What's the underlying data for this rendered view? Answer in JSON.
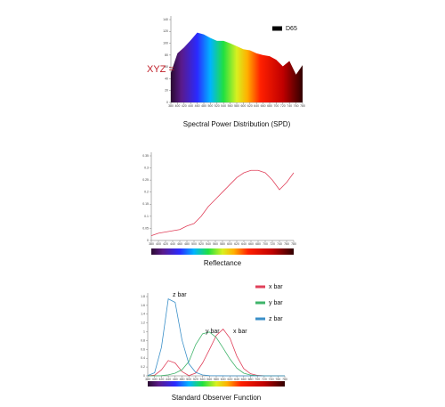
{
  "chart_data": [
    {
      "type": "area",
      "title": "Spectral Power Distribution (SPD)",
      "annotations": [
        "XYZ ="
      ],
      "x": [
        380,
        400,
        420,
        440,
        460,
        480,
        500,
        520,
        540,
        560,
        580,
        600,
        620,
        640,
        660,
        680,
        700,
        720,
        740,
        760,
        780
      ],
      "series": [
        {
          "name": "D65",
          "color": "#000000",
          "values": [
            50,
            83,
            93,
            105,
            118,
            115,
            109,
            104,
            104,
            100,
            95,
            90,
            88,
            83,
            80,
            78,
            72,
            61,
            70,
            47,
            63
          ]
        }
      ],
      "xlim": [
        380,
        780
      ],
      "xticks": [
        380,
        400,
        420,
        440,
        460,
        480,
        500,
        520,
        540,
        560,
        580,
        600,
        620,
        640,
        660,
        680,
        700,
        720,
        740,
        760,
        780
      ],
      "ylim": [
        0,
        140
      ],
      "yticks": [
        0,
        20,
        40,
        60,
        80,
        100,
        120,
        140
      ]
    },
    {
      "type": "line",
      "title": "Reflectance",
      "x": [
        380,
        400,
        420,
        440,
        460,
        480,
        500,
        520,
        540,
        560,
        580,
        600,
        620,
        640,
        660,
        680,
        700,
        720,
        740,
        760,
        780
      ],
      "series": [
        {
          "color": "#e0405a",
          "values": [
            0.02,
            0.03,
            0.035,
            0.04,
            0.045,
            0.06,
            0.07,
            0.1,
            0.14,
            0.17,
            0.2,
            0.23,
            0.26,
            0.28,
            0.29,
            0.29,
            0.28,
            0.25,
            0.21,
            0.24,
            0.28
          ]
        }
      ],
      "xlim": [
        380,
        780
      ],
      "xticks": [
        380,
        400,
        420,
        440,
        460,
        480,
        500,
        520,
        540,
        560,
        580,
        600,
        620,
        640,
        660,
        680,
        700,
        720,
        740,
        760,
        780
      ],
      "ylim": [
        0,
        0.35
      ],
      "yticks": [
        0,
        0.05,
        0.1,
        0.15,
        0.2,
        0.25,
        0.3,
        0.35
      ]
    },
    {
      "type": "line",
      "title": "Standard Observer Function",
      "annotations": [
        "z bar",
        "y bar",
        "x bar"
      ],
      "x": [
        380,
        400,
        420,
        440,
        460,
        480,
        500,
        520,
        540,
        560,
        580,
        600,
        620,
        640,
        660,
        680,
        700,
        720,
        740,
        760,
        780
      ],
      "series": [
        {
          "name": "x bar",
          "color": "#e0405a",
          "values": [
            0.001,
            0.014,
            0.134,
            0.348,
            0.291,
            0.096,
            0.005,
            0.063,
            0.29,
            0.595,
            0.916,
            1.062,
            0.854,
            0.447,
            0.165,
            0.047,
            0.011,
            0.003,
            0.001,
            0,
            0
          ]
        },
        {
          "name": "y bar",
          "color": "#3fb46a",
          "values": [
            0,
            0,
            0.004,
            0.023,
            0.06,
            0.139,
            0.323,
            0.71,
            0.954,
            0.995,
            0.87,
            0.631,
            0.381,
            0.175,
            0.061,
            0.017,
            0.004,
            0.001,
            0,
            0,
            0
          ]
        },
        {
          "name": "z bar",
          "color": "#3a8fc8",
          "values": [
            0.007,
            0.068,
            0.646,
            1.747,
            1.669,
            0.813,
            0.272,
            0.078,
            0.02,
            0.004,
            0.002,
            0.001,
            0,
            0,
            0,
            0,
            0,
            0,
            0,
            0,
            0
          ]
        }
      ],
      "xlim": [
        380,
        780
      ],
      "xticks": [
        380,
        400,
        420,
        440,
        460,
        480,
        500,
        520,
        540,
        560,
        580,
        600,
        620,
        640,
        660,
        680,
        700,
        720,
        740,
        760,
        780
      ],
      "ylim": [
        0,
        1.8
      ],
      "yticks": [
        0,
        0.2,
        0.4,
        0.6,
        0.8,
        1,
        1.2,
        1.4,
        1.6,
        1.8
      ]
    }
  ]
}
